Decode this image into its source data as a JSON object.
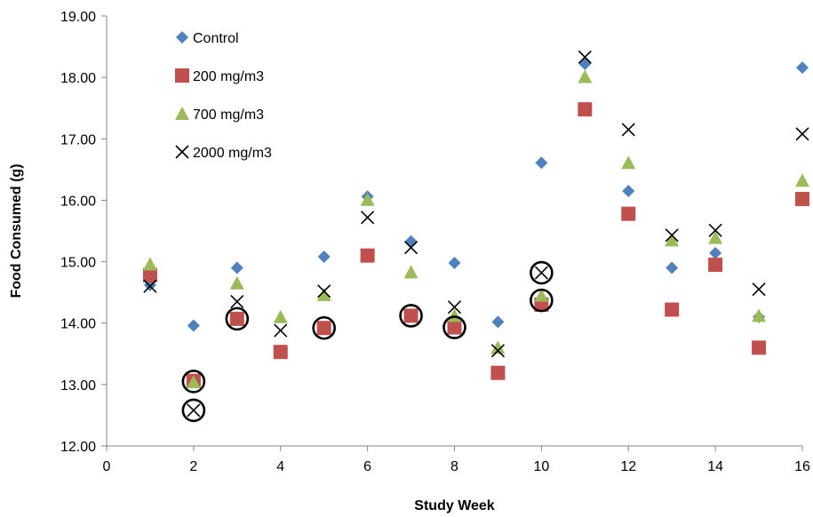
{
  "chart_data": {
    "type": "scatter",
    "title": "",
    "xlabel": "Study Week",
    "ylabel": "Food Consumed (g)",
    "xlim": [
      0,
      16
    ],
    "ylim": [
      12.0,
      19.0
    ],
    "x_ticks": [
      "0",
      "2",
      "4",
      "6",
      "8",
      "10",
      "12",
      "14",
      "16"
    ],
    "y_ticks": [
      "12.00",
      "13.00",
      "14.00",
      "15.00",
      "16.00",
      "17.00",
      "18.00",
      "19.00"
    ],
    "grid": false,
    "legend_position": "top-left",
    "x": [
      1,
      2,
      3,
      4,
      5,
      6,
      7,
      8,
      9,
      10,
      11,
      12,
      13,
      14,
      15,
      16
    ],
    "series": [
      {
        "name": "Control",
        "marker": "diamond",
        "color": "#4f81bd",
        "values": [
          14.62,
          13.96,
          14.9,
          null,
          15.08,
          16.06,
          15.33,
          14.98,
          14.02,
          16.61,
          18.22,
          16.15,
          14.9,
          15.14,
          14.1,
          18.16
        ]
      },
      {
        "name": "200 mg/m3",
        "marker": "square",
        "color": "#c0504d",
        "values": [
          14.78,
          13.06,
          14.07,
          13.53,
          13.92,
          15.1,
          14.12,
          13.93,
          13.19,
          14.3,
          17.48,
          15.78,
          14.22,
          14.95,
          13.6,
          16.02
        ]
      },
      {
        "name": "700 mg/m3",
        "marker": "triangle",
        "color": "#9bbb59",
        "values": [
          14.96,
          13.04,
          14.65,
          14.1,
          14.46,
          16.01,
          14.83,
          14.12,
          13.6,
          14.45,
          18.01,
          16.61,
          15.35,
          15.39,
          14.12,
          16.32
        ]
      },
      {
        "name": "2000 mg/m3",
        "marker": "x",
        "color": "#000000",
        "values": [
          14.6,
          12.58,
          14.35,
          13.88,
          14.52,
          15.72,
          15.23,
          14.26,
          13.55,
          14.82,
          18.33,
          17.15,
          15.43,
          15.51,
          14.55,
          17.08
        ]
      }
    ],
    "circled_points": [
      {
        "x": 2,
        "y": 13.05
      },
      {
        "x": 2,
        "y": 12.58
      },
      {
        "x": 3,
        "y": 14.07
      },
      {
        "x": 5,
        "y": 13.92
      },
      {
        "x": 7,
        "y": 14.12
      },
      {
        "x": 8,
        "y": 13.93
      },
      {
        "x": 10,
        "y": 14.37
      },
      {
        "x": 10,
        "y": 14.82
      }
    ]
  }
}
